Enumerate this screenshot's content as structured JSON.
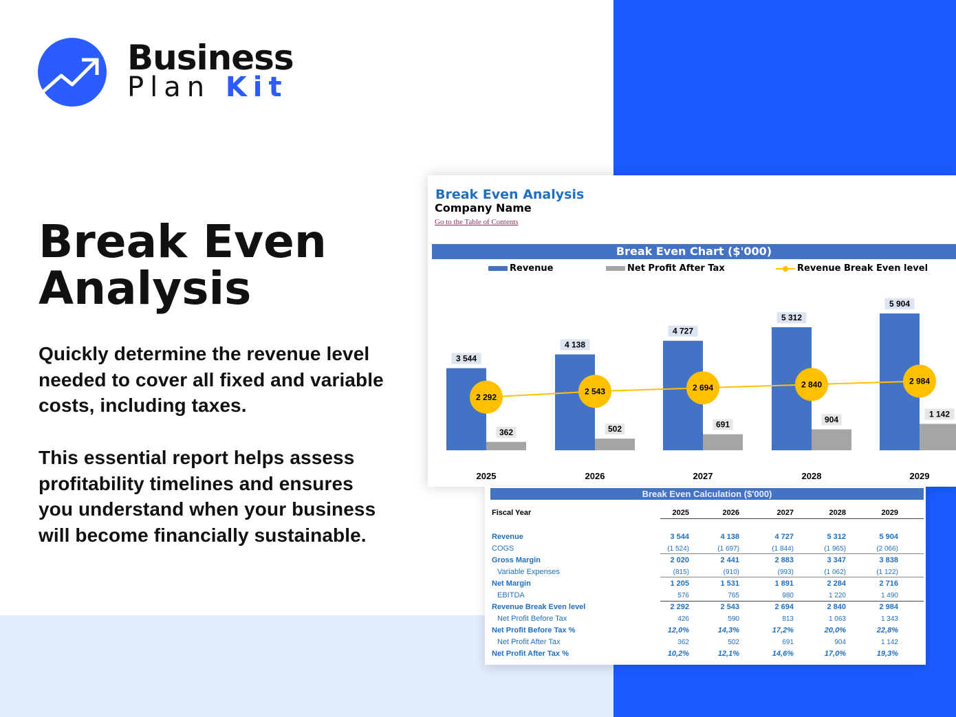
{
  "brand": {
    "line1": "Business",
    "line2a": "Plan ",
    "line2b": "Kit",
    "accent": "#2b5cff"
  },
  "headline": "Break Even Analysis",
  "paragraph1": "Quickly determine the revenue level needed to cover all fixed and variable costs, including taxes.",
  "paragraph2": "This essential report helps assess profitability timelines and ensures you understand when your business will become financially sustainable.",
  "sheet": {
    "title": "Break Even Analysis",
    "company": "Company Name",
    "toc_link": "Go to the Table of Contents"
  },
  "chart_data": {
    "type": "bar",
    "title": "Break Even Chart ($'000)",
    "categories": [
      "2025",
      "2026",
      "2027",
      "2028",
      "2029"
    ],
    "series": [
      {
        "name": "Revenue",
        "type": "bar",
        "color": "#4472c4",
        "values": [
          3544,
          4138,
          4727,
          5312,
          5904
        ],
        "labels": [
          "3 544",
          "4 138",
          "4 727",
          "5 312",
          "5 904"
        ]
      },
      {
        "name": "Net Profit After Tax",
        "type": "bar",
        "color": "#a5a5a5",
        "values": [
          362,
          502,
          691,
          904,
          1142
        ],
        "labels": [
          "362",
          "502",
          "691",
          "904",
          "1 142"
        ]
      },
      {
        "name": "Revenue Break Even level",
        "type": "line",
        "color": "#ffc000",
        "values": [
          2292,
          2543,
          2694,
          2840,
          2984
        ],
        "labels": [
          "2 292",
          "2 543",
          "2 694",
          "2 840",
          "2 984"
        ]
      }
    ],
    "legend": "top",
    "grid": false
  },
  "table": {
    "title": "Break Even Calculation ($'000)",
    "header": "Fiscal Year",
    "years": [
      "2025",
      "2026",
      "2027",
      "2028",
      "2029"
    ],
    "rows": [
      {
        "label": "Revenue",
        "values": [
          "3 544",
          "4 138",
          "4 727",
          "5 312",
          "5 904"
        ]
      },
      {
        "label": "COGS",
        "values": [
          "(1 524)",
          "(1 697)",
          "(1 844)",
          "(1 965)",
          "(2 066)"
        ]
      },
      {
        "label": "Gross Margin",
        "values": [
          "2 020",
          "2 441",
          "2 883",
          "3 347",
          "3 838"
        ]
      },
      {
        "label": "Variable Expenses",
        "values": [
          "(815)",
          "(910)",
          "(993)",
          "(1 062)",
          "(1 122)"
        ]
      },
      {
        "label": "Net Margin",
        "values": [
          "1 205",
          "1 531",
          "1 891",
          "2 284",
          "2 716"
        ]
      },
      {
        "label": "EBITDA",
        "values": [
          "576",
          "765",
          "980",
          "1 220",
          "1 490"
        ]
      },
      {
        "label": "Revenue Break Even level",
        "values": [
          "2 292",
          "2 543",
          "2 694",
          "2 840",
          "2 984"
        ]
      },
      {
        "label": "Net Profit Before Tax",
        "values": [
          "426",
          "590",
          "813",
          "1 063",
          "1 343"
        ]
      },
      {
        "label": "Net Profit Before Tax %",
        "values": [
          "12,0%",
          "14,3%",
          "17,2%",
          "20,0%",
          "22,8%"
        ]
      },
      {
        "label": "Net Profit After Tax",
        "values": [
          "362",
          "502",
          "691",
          "904",
          "1 142"
        ]
      },
      {
        "label": "Net Profit After Tax %",
        "values": [
          "10,2%",
          "12,1%",
          "14,6%",
          "17,0%",
          "19,3%"
        ]
      }
    ]
  }
}
